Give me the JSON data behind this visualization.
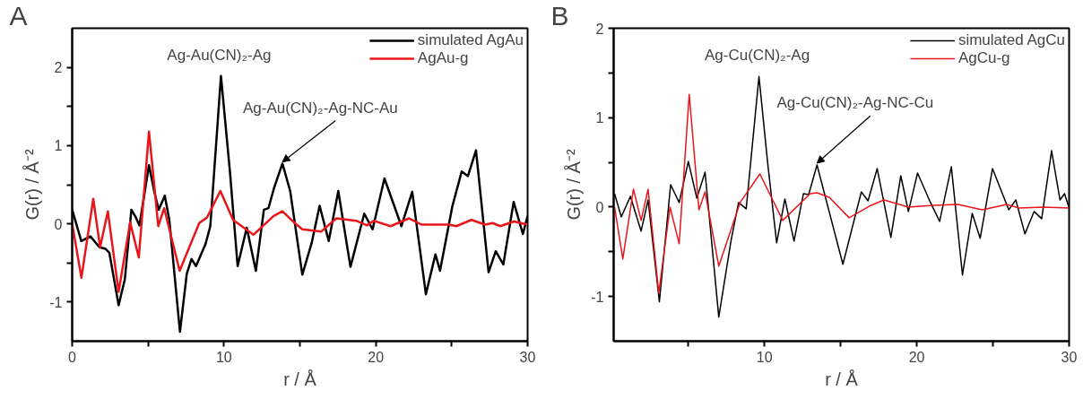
{
  "chart_data": [
    {
      "type": "line",
      "title": "A",
      "xlabel": "r / Å",
      "ylabel": "G(r) / Å⁻²",
      "xlim": [
        0,
        30
      ],
      "ylim": [
        -1.5,
        2.5
      ],
      "xticks": [
        0,
        {
          "value": 5,
          "label": null
        },
        10,
        {
          "value": 15,
          "label": null
        },
        20,
        {
          "value": 25,
          "label": null
        },
        30
      ],
      "yticks": [
        -1,
        {
          "value": -0.5,
          "label": null
        },
        0,
        {
          "value": 0.5,
          "label": null
        },
        1,
        {
          "value": 1.5,
          "label": null
        },
        2
      ],
      "grid": false,
      "legend": "top right",
      "line_style": "solid",
      "annotations": [
        {
          "text": "Ag-Au(CN)₂-Ag",
          "x": 9.8,
          "y": 1.89
        },
        {
          "text": "Ag-Au(CN)₂-Ag-NC-Au",
          "x": 13.85,
          "y": 0.77
        }
      ],
      "series": [
        {
          "name": "simulated AgAu",
          "color": "#000000",
          "x": [
            0,
            0.6,
            1.2,
            1.8,
            2.2,
            2.45,
            3.06,
            3.47,
            3.9,
            4.2,
            4.43,
            5.06,
            5.4,
            5.7,
            6.1,
            6.4,
            7.1,
            7.55,
            7.86,
            8.16,
            8.78,
            9.1,
            9.8,
            10.4,
            10.9,
            11.5,
            12.1,
            12.63,
            12.93,
            13.3,
            13.85,
            14.36,
            15.16,
            15.77,
            16.3,
            16.9,
            17.53,
            18.33,
            19.24,
            19.79,
            20.57,
            21.69,
            22.4,
            23.3,
            23.93,
            24.23,
            25.05,
            25.66,
            26.07,
            26.6,
            27.43,
            27.9,
            28.4,
            29.08,
            29.69,
            30
          ],
          "values": [
            0.18,
            -0.22,
            -0.16,
            -0.3,
            -0.32,
            -0.37,
            -1.04,
            -0.71,
            0.18,
            0.08,
            -0.02,
            0.75,
            0.42,
            0.18,
            0.36,
            0.05,
            -1.38,
            -0.64,
            -0.45,
            -0.54,
            -0.26,
            -0.03,
            1.89,
            0.65,
            -0.54,
            -0.05,
            -0.6,
            0.18,
            0.2,
            0.46,
            0.77,
            0.42,
            -0.65,
            -0.25,
            0.23,
            -0.22,
            0.42,
            -0.55,
            0.13,
            -0.07,
            0.58,
            -0.03,
            0.41,
            -0.9,
            -0.39,
            -0.6,
            0.23,
            0.67,
            0.61,
            0.94,
            -0.62,
            -0.35,
            -0.52,
            0.28,
            -0.13,
            0.1
          ]
        },
        {
          "name": "AgAu-g",
          "color": "#e8161b",
          "x": [
            0,
            0.61,
            1.39,
            1.84,
            2.35,
            3.06,
            3.82,
            4.39,
            5.06,
            5.67,
            6.06,
            7.08,
            8.37,
            8.88,
            9.76,
            10.6,
            11.94,
            13.27,
            13.85,
            14.66,
            15.16,
            16.4,
            17.4,
            18.7,
            19.43,
            19.85,
            20.97,
            22.2,
            23.0,
            24.8,
            25.3,
            26.3,
            27.2,
            27.7,
            28.2,
            29.1,
            30
          ],
          "values": [
            0,
            -0.69,
            0.32,
            -0.3,
            0.16,
            -0.87,
            0.02,
            -0.43,
            1.18,
            -0.03,
            0.2,
            -0.6,
            0.01,
            0.08,
            0.42,
            0.05,
            -0.14,
            0.1,
            0.16,
            0.01,
            -0.07,
            -0.1,
            0.07,
            0.04,
            -0.02,
            0.04,
            -0.03,
            0.07,
            -0.01,
            -0.01,
            -0.03,
            0.05,
            -0.01,
            0.01,
            -0.03,
            0.03,
            -0.01
          ]
        }
      ]
    },
    {
      "type": "line",
      "title": "B",
      "xlabel": "r / Å",
      "ylabel": "G(r) / Å⁻²",
      "xlim": [
        0.1,
        30
      ],
      "ylim": [
        -1.5,
        2
      ],
      "xticks": [
        {
          "value": 5,
          "label": null
        },
        10,
        {
          "value": 15,
          "label": null
        },
        20,
        {
          "value": 25,
          "label": null
        },
        30
      ],
      "yticks": [
        -1,
        {
          "value": -0.5,
          "label": null
        },
        0,
        {
          "value": 0.5,
          "label": null
        },
        1,
        {
          "value": 1.5,
          "label": null
        },
        2
      ],
      "grid": false,
      "legend": "top right",
      "line_style": "solid",
      "annotations": [
        {
          "text": "Ag-Cu(CN)₂-Ag",
          "x": 9.64,
          "y": 1.46
        },
        {
          "text": "Ag-Cu(CN)₂-Ag-NC-Cu",
          "x": 13.45,
          "y": 0.47
        }
      ],
      "series": [
        {
          "name": "simulated AgCu",
          "color": "#000000",
          "x": [
            0.16,
            0.6,
            1.2,
            1.9,
            2.36,
            3.1,
            3.84,
            4.4,
            5.0,
            5.56,
            6.1,
            7.0,
            7.8,
            8.3,
            8.8,
            9.64,
            10.2,
            10.8,
            11.34,
            11.94,
            12.56,
            12.9,
            13.45,
            15.15,
            16.36,
            16.8,
            17.4,
            18.3,
            18.95,
            19.45,
            20.05,
            20.9,
            21.5,
            22.27,
            23.0,
            23.64,
            24.16,
            24.97,
            26.04,
            26.5,
            27.1,
            27.7,
            28.2,
            28.85,
            29.4,
            29.7,
            30
          ],
          "values": [
            0.15,
            -0.11,
            0.12,
            -0.27,
            0.08,
            -1.06,
            0.25,
            0.05,
            0.51,
            0.1,
            0.39,
            -1.23,
            -0.38,
            0.05,
            -0.02,
            1.46,
            0.51,
            -0.4,
            0.09,
            -0.38,
            0.15,
            0.14,
            0.47,
            -0.64,
            0.17,
            0.07,
            0.43,
            -0.34,
            0.35,
            -0.05,
            0.38,
            0.05,
            -0.16,
            0.45,
            -0.76,
            -0.07,
            -0.35,
            0.43,
            -0.03,
            0.08,
            -0.3,
            -0.05,
            -0.13,
            0.63,
            0.08,
            0.15,
            -0.01
          ]
        },
        {
          "name": "AgCu-g",
          "color": "#e8161b",
          "x": [
            0.16,
            0.7,
            1.4,
            1.9,
            2.36,
            3.06,
            3.8,
            4.4,
            5.06,
            5.7,
            6.1,
            7.0,
            8.4,
            9.7,
            11.2,
            13.0,
            13.45,
            14.25,
            15.56,
            17.0,
            17.85,
            19.45,
            21.1,
            22.7,
            24.3,
            25.9,
            26.7,
            28.3,
            30
          ],
          "values": [
            0,
            -0.58,
            0.2,
            -0.15,
            0.2,
            -0.96,
            0.0,
            -0.41,
            1.26,
            -0.03,
            0.17,
            -0.66,
            0.05,
            0.37,
            -0.15,
            0.15,
            0.16,
            0.11,
            -0.12,
            0.02,
            0.08,
            0.0,
            0.02,
            0.03,
            -0.03,
            0.03,
            -0.01,
            0,
            -0.01
          ]
        }
      ]
    }
  ]
}
